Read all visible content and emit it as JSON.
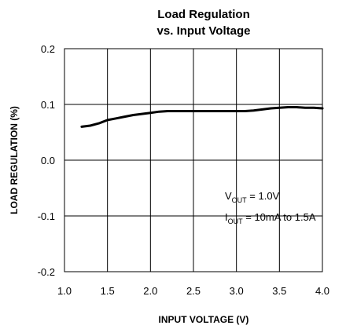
{
  "chart_data": {
    "type": "line",
    "title": [
      "Load Regulation",
      "vs. Input Voltage"
    ],
    "xlabel": "INPUT VOLTAGE (V)",
    "ylabel": "LOAD REGULATION (%)",
    "xlim": [
      1.0,
      4.0
    ],
    "ylim": [
      -0.2,
      0.2
    ],
    "xticks": [
      1.0,
      1.5,
      2.0,
      2.5,
      3.0,
      3.5,
      4.0
    ],
    "xtick_labels": [
      "1.0",
      "1.5",
      "2.0",
      "2.5",
      "3.0",
      "3.5",
      "4.0"
    ],
    "yticks": [
      -0.2,
      -0.1,
      0.0,
      0.1,
      0.2
    ],
    "ytick_labels": [
      "-0.2",
      "-0.1",
      "0.0",
      "0.1",
      "0.2"
    ],
    "grid": true,
    "series": [
      {
        "x": [
          1.2,
          1.3,
          1.4,
          1.5,
          1.6,
          1.7,
          1.8,
          1.9,
          2.0,
          2.1,
          2.2,
          2.3,
          2.5,
          2.7,
          2.9,
          3.1,
          3.2,
          3.3,
          3.4,
          3.5,
          3.6,
          3.7,
          3.8,
          3.9,
          4.0
        ],
        "y": [
          0.06,
          0.062,
          0.066,
          0.072,
          0.075,
          0.078,
          0.081,
          0.083,
          0.085,
          0.087,
          0.088,
          0.088,
          0.088,
          0.088,
          0.088,
          0.088,
          0.089,
          0.091,
          0.093,
          0.094,
          0.095,
          0.095,
          0.094,
          0.094,
          0.093
        ]
      }
    ],
    "annotations": [
      {
        "main": "V",
        "sub": "OUT",
        "rest": " = 1.0V"
      },
      {
        "main": "I",
        "sub": "OUT",
        "rest": " = 10mA to 1.5A"
      }
    ]
  }
}
